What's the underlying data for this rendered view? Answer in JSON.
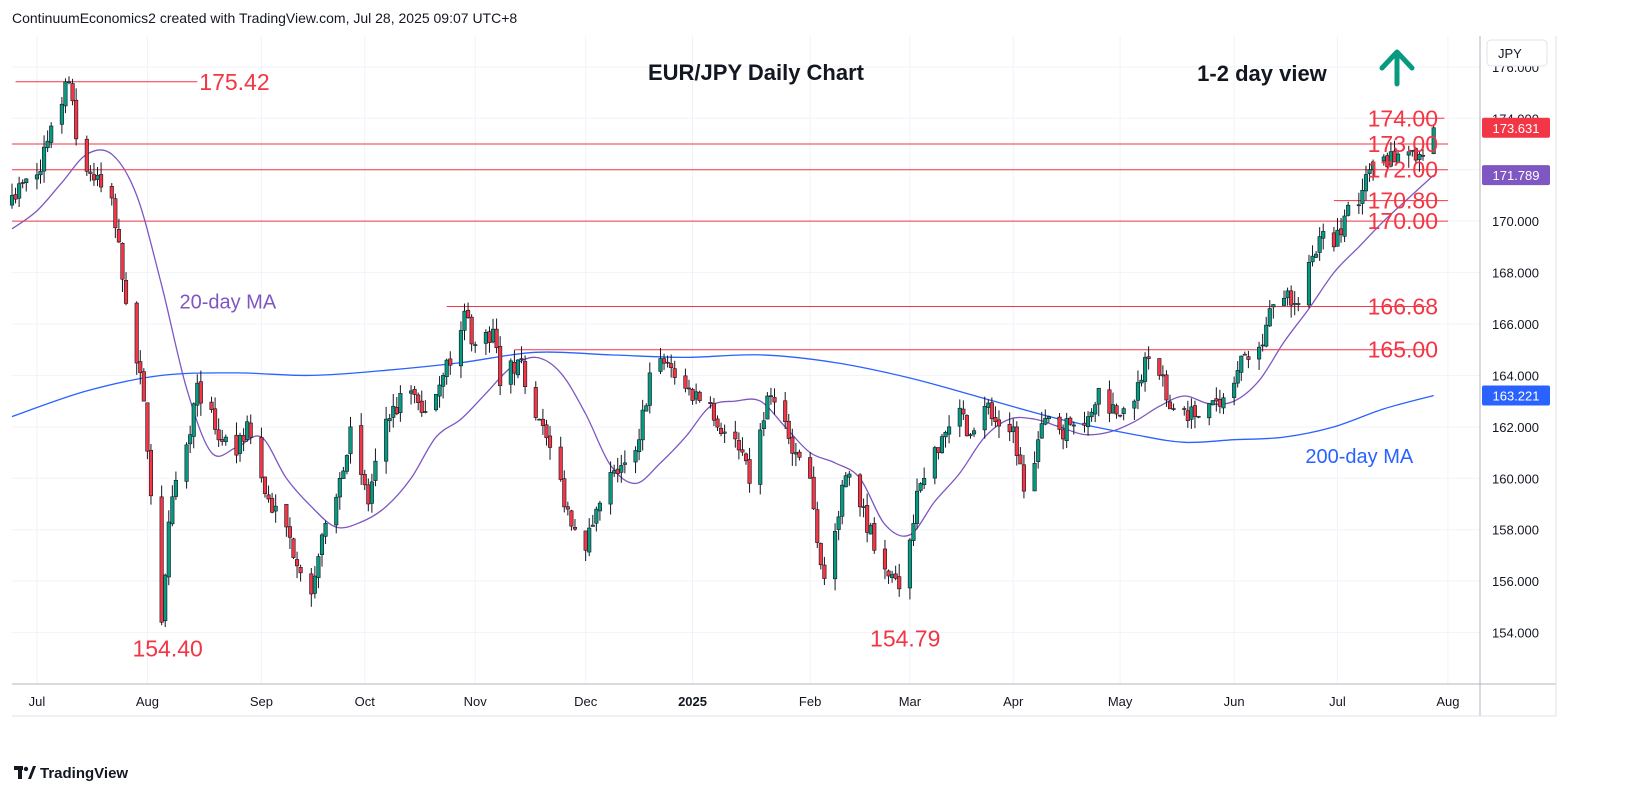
{
  "header": {
    "attribution": "ContinuumEconomics2 created with TradingView.com, Jul 28, 2025 09:07 UTC+8"
  },
  "footer": {
    "logo_text": "TradingView",
    "logo_icon": "tradingview-logo-icon"
  },
  "chart_data": {
    "type": "candlestick",
    "title": "EUR/JPY Daily Chart",
    "subtitle": "1-2 day view",
    "currency_label": "JPY",
    "arrow": {
      "direction": "up",
      "icon": "up-arrow-icon",
      "color": "#089981"
    },
    "ylim": [
      152.0,
      177.2
    ],
    "y_ticks": [
      "154.000",
      "156.000",
      "158.000",
      "160.000",
      "162.000",
      "164.000",
      "166.000",
      "168.000",
      "170.000",
      "172.000",
      "174.000",
      "176.000"
    ],
    "y_tick_values": [
      154,
      156,
      158,
      160,
      162,
      164,
      166,
      168,
      170,
      172,
      174,
      176
    ],
    "x_ticks": [
      "Jul",
      "Aug",
      "Sep",
      "Oct",
      "Nov",
      "Dec",
      "2025",
      "Feb",
      "Mar",
      "Apr",
      "May",
      "Jun",
      "Jul",
      "Aug"
    ],
    "x_tick_dates": [
      "2024-07-01",
      "2024-08-01",
      "2024-09-02",
      "2024-10-01",
      "2024-11-01",
      "2024-12-02",
      "2025-01-01",
      "2025-02-03",
      "2025-03-03",
      "2025-04-01",
      "2025-05-01",
      "2025-06-02",
      "2025-07-01",
      "2025-08-01"
    ],
    "x_range": [
      "2024-06-24",
      "2025-08-10"
    ],
    "last_date": "2025-07-28",
    "price_badges": [
      {
        "label": "173.631",
        "value": 173.631,
        "color": "#f23645"
      },
      {
        "label": "171.789",
        "value": 171.789,
        "color": "#7e57c2"
      },
      {
        "label": "163.221",
        "value": 163.221,
        "color": "#2962ff"
      }
    ],
    "levels": [
      {
        "label": "175.42",
        "value": 175.42,
        "from": "2024-06-25",
        "to": "2024-08-15"
      },
      {
        "label": "174.00",
        "value": 174.0,
        "from": "2025-07-11",
        "to": "2025-07-31"
      },
      {
        "label": "173.00",
        "value": 173.0,
        "from": "2024-06-24",
        "to": "2025-08-01"
      },
      {
        "label": "172.00",
        "value": 172.0,
        "from": "2024-06-24",
        "to": "2025-08-01"
      },
      {
        "label": "170.80",
        "value": 170.8,
        "from": "2025-06-30",
        "to": "2025-08-01"
      },
      {
        "label": "170.00",
        "value": 170.0,
        "from": "2024-06-24",
        "to": "2025-08-01"
      },
      {
        "label": "166.68",
        "value": 166.68,
        "from": "2024-10-24",
        "to": "2025-07-26"
      },
      {
        "label": "165.00",
        "value": 165.0,
        "from": "2024-11-12",
        "to": "2025-07-26"
      }
    ],
    "level_color": "#f23645",
    "lows": [
      {
        "label": "154.40",
        "value": 154.4,
        "date": "2024-08-05"
      },
      {
        "label": "154.79",
        "value": 154.79,
        "date": "2025-02-28"
      }
    ],
    "series": [
      {
        "name": "20-day MA",
        "color": "#7e57c2",
        "label_date": "2024-08-10",
        "label_value": 166.6,
        "points": [
          [
            "2024-06-24",
            169.7
          ],
          [
            "2024-07-01",
            170.4
          ],
          [
            "2024-07-08",
            171.5
          ],
          [
            "2024-07-15",
            172.6
          ],
          [
            "2024-07-22",
            172.6
          ],
          [
            "2024-07-29",
            171.0
          ],
          [
            "2024-08-05",
            167.5
          ],
          [
            "2024-08-12",
            163.5
          ],
          [
            "2024-08-19",
            161.0
          ],
          [
            "2024-08-26",
            161.2
          ],
          [
            "2024-09-02",
            161.6
          ],
          [
            "2024-09-09",
            160.0
          ],
          [
            "2024-09-16",
            158.9
          ],
          [
            "2024-09-23",
            158.1
          ],
          [
            "2024-09-30",
            158.3
          ],
          [
            "2024-10-07",
            158.9
          ],
          [
            "2024-10-14",
            160.0
          ],
          [
            "2024-10-21",
            161.6
          ],
          [
            "2024-10-28",
            162.3
          ],
          [
            "2024-11-04",
            163.3
          ],
          [
            "2024-11-11",
            164.3
          ],
          [
            "2024-11-18",
            164.7
          ],
          [
            "2024-11-25",
            164.1
          ],
          [
            "2024-12-02",
            162.5
          ],
          [
            "2024-12-09",
            160.5
          ],
          [
            "2024-12-16",
            159.8
          ],
          [
            "2024-12-23",
            160.6
          ],
          [
            "2024-12-30",
            161.6
          ],
          [
            "2025-01-06",
            162.8
          ],
          [
            "2025-01-13",
            163.0
          ],
          [
            "2025-01-20",
            163.0
          ],
          [
            "2025-01-27",
            162.0
          ],
          [
            "2025-02-03",
            161.0
          ],
          [
            "2025-02-10",
            160.6
          ],
          [
            "2025-02-17",
            160.0
          ],
          [
            "2025-02-24",
            158.2
          ],
          [
            "2025-03-03",
            157.8
          ],
          [
            "2025-03-10",
            159.1
          ],
          [
            "2025-03-17",
            160.2
          ],
          [
            "2025-03-24",
            161.6
          ],
          [
            "2025-03-31",
            162.3
          ],
          [
            "2025-04-07",
            162.3
          ],
          [
            "2025-04-14",
            162.0
          ],
          [
            "2025-04-21",
            161.7
          ],
          [
            "2025-04-28",
            161.8
          ],
          [
            "2025-05-05",
            162.2
          ],
          [
            "2025-05-12",
            162.8
          ],
          [
            "2025-05-19",
            163.2
          ],
          [
            "2025-05-26",
            162.9
          ],
          [
            "2025-06-02",
            163.0
          ],
          [
            "2025-06-09",
            163.8
          ],
          [
            "2025-06-16",
            165.3
          ],
          [
            "2025-06-23",
            166.6
          ],
          [
            "2025-06-30",
            168.0
          ],
          [
            "2025-07-07",
            169.0
          ],
          [
            "2025-07-14",
            170.0
          ],
          [
            "2025-07-21",
            170.9
          ],
          [
            "2025-07-28",
            171.789
          ]
        ]
      },
      {
        "name": "200-day MA",
        "color": "#2962ff",
        "label_date": "2025-06-22",
        "label_value": 160.6,
        "points": [
          [
            "2024-06-24",
            162.4
          ],
          [
            "2024-07-15",
            163.4
          ],
          [
            "2024-08-05",
            164.0
          ],
          [
            "2024-08-26",
            164.1
          ],
          [
            "2024-09-16",
            164.0
          ],
          [
            "2024-10-07",
            164.2
          ],
          [
            "2024-10-28",
            164.5
          ],
          [
            "2024-11-18",
            164.9
          ],
          [
            "2024-12-09",
            164.8
          ],
          [
            "2024-12-30",
            164.7
          ],
          [
            "2025-01-20",
            164.8
          ],
          [
            "2025-02-10",
            164.5
          ],
          [
            "2025-03-03",
            163.9
          ],
          [
            "2025-03-24",
            163.1
          ],
          [
            "2025-04-14",
            162.3
          ],
          [
            "2025-05-05",
            161.7
          ],
          [
            "2025-05-19",
            161.4
          ],
          [
            "2025-06-02",
            161.5
          ],
          [
            "2025-06-16",
            161.6
          ],
          [
            "2025-06-30",
            162.0
          ],
          [
            "2025-07-14",
            162.7
          ],
          [
            "2025-07-28",
            163.221
          ]
        ]
      }
    ],
    "ohlc_anchors": [
      [
        "2024-06-24",
        171.0
      ],
      [
        "2024-07-01",
        171.8
      ],
      [
        "2024-07-05",
        173.7
      ],
      [
        "2024-07-10",
        175.42
      ],
      [
        "2024-07-12",
        173.2
      ],
      [
        "2024-07-17",
        171.6
      ],
      [
        "2024-07-22",
        170.9
      ],
      [
        "2024-07-26",
        166.8
      ],
      [
        "2024-07-31",
        163.0
      ],
      [
        "2024-08-05",
        154.4
      ],
      [
        "2024-08-07",
        158.3
      ],
      [
        "2024-08-12",
        161.3
      ],
      [
        "2024-08-15",
        163.7
      ],
      [
        "2024-08-20",
        161.9
      ],
      [
        "2024-08-26",
        160.9
      ],
      [
        "2024-08-29",
        162.2
      ],
      [
        "2024-09-03",
        159.4
      ],
      [
        "2024-09-10",
        157.7
      ],
      [
        "2024-09-16",
        155.5
      ],
      [
        "2024-09-19",
        157.8
      ],
      [
        "2024-09-24",
        160.0
      ],
      [
        "2024-09-27",
        162.0
      ],
      [
        "2024-10-02",
        159.0
      ],
      [
        "2024-10-07",
        162.3
      ],
      [
        "2024-10-14",
        163.4
      ],
      [
        "2024-10-18",
        162.6
      ],
      [
        "2024-10-23",
        164.0
      ],
      [
        "2024-10-29",
        166.5
      ],
      [
        "2024-11-01",
        165.2
      ],
      [
        "2024-11-06",
        165.8
      ],
      [
        "2024-11-08",
        163.6
      ],
      [
        "2024-11-13",
        164.6
      ],
      [
        "2024-11-19",
        162.3
      ],
      [
        "2024-11-22",
        161.2
      ],
      [
        "2024-11-27",
        158.8
      ],
      [
        "2024-12-02",
        157.2
      ],
      [
        "2024-12-05",
        158.8
      ],
      [
        "2024-12-10",
        160.3
      ],
      [
        "2024-12-13",
        160.6
      ],
      [
        "2024-12-17",
        161.5
      ],
      [
        "2024-12-20",
        164.1
      ],
      [
        "2024-12-25",
        164.5
      ],
      [
        "2024-12-30",
        163.5
      ],
      [
        "2025-01-06",
        162.9
      ],
      [
        "2025-01-10",
        161.8
      ],
      [
        "2025-01-14",
        161.1
      ],
      [
        "2025-01-17",
        159.8
      ],
      [
        "2025-01-22",
        163.2
      ],
      [
        "2025-01-27",
        162.2
      ],
      [
        "2025-01-30",
        161.0
      ],
      [
        "2025-02-03",
        160.0
      ],
      [
        "2025-02-05",
        157.5
      ],
      [
        "2025-02-07",
        156.1
      ],
      [
        "2025-02-11",
        158.5
      ],
      [
        "2025-02-13",
        160.1
      ],
      [
        "2025-02-18",
        158.9
      ],
      [
        "2025-02-21",
        157.2
      ],
      [
        "2025-02-25",
        156.2
      ],
      [
        "2025-02-28",
        155.7
      ],
      [
        "2025-03-03",
        157.6
      ],
      [
        "2025-03-05",
        159.5
      ],
      [
        "2025-03-07",
        160.0
      ],
      [
        "2025-03-11",
        161.0
      ],
      [
        "2025-03-14",
        162.0
      ],
      [
        "2025-03-18",
        162.5
      ],
      [
        "2025-03-20",
        161.7
      ],
      [
        "2025-03-24",
        162.8
      ],
      [
        "2025-03-27",
        162.2
      ],
      [
        "2025-04-01",
        162.0
      ],
      [
        "2025-04-04",
        159.5
      ],
      [
        "2025-04-08",
        161.5
      ],
      [
        "2025-04-11",
        162.4
      ],
      [
        "2025-04-14",
        161.9
      ],
      [
        "2025-04-17",
        162.1
      ],
      [
        "2025-04-22",
        162.4
      ],
      [
        "2025-04-25",
        163.5
      ],
      [
        "2025-04-30",
        162.5
      ],
      [
        "2025-05-05",
        163.0
      ],
      [
        "2025-05-08",
        164.7
      ],
      [
        "2025-05-12",
        164.0
      ],
      [
        "2025-05-15",
        162.7
      ],
      [
        "2025-05-19",
        162.7
      ],
      [
        "2025-05-22",
        162.4
      ],
      [
        "2025-05-26",
        162.9
      ],
      [
        "2025-05-29",
        162.8
      ],
      [
        "2025-06-02",
        163.7
      ],
      [
        "2025-06-05",
        164.8
      ],
      [
        "2025-06-09",
        165.1
      ],
      [
        "2025-06-12",
        166.6
      ],
      [
        "2025-06-16",
        167.0
      ],
      [
        "2025-06-19",
        166.8
      ],
      [
        "2025-06-23",
        168.4
      ],
      [
        "2025-06-26",
        169.4
      ],
      [
        "2025-06-30",
        169.0
      ],
      [
        "2025-07-03",
        170.2
      ],
      [
        "2025-07-08",
        171.2
      ],
      [
        "2025-07-10",
        172.0
      ],
      [
        "2025-07-14",
        172.5
      ],
      [
        "2025-07-17",
        172.3
      ],
      [
        "2025-07-21",
        172.7
      ],
      [
        "2025-07-24",
        172.6
      ],
      [
        "2025-07-28",
        173.631
      ]
    ],
    "up_color": "#089981",
    "down_color": "#f23645",
    "grid": true
  }
}
